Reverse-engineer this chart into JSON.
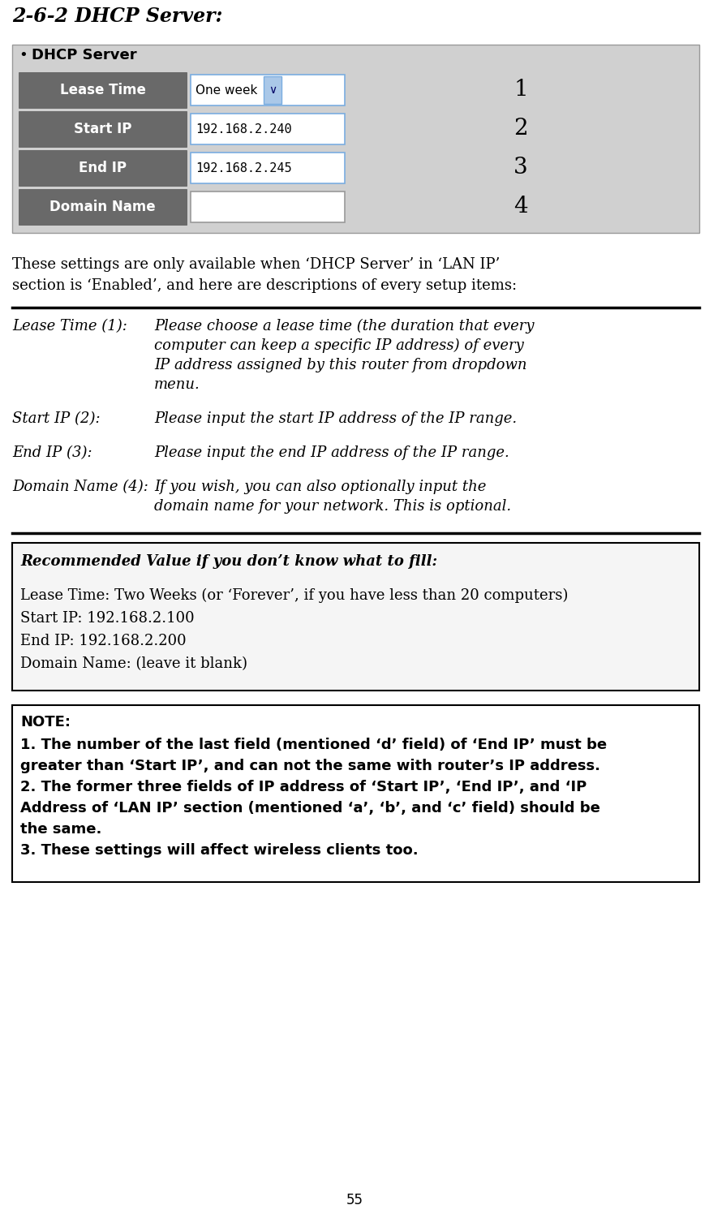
{
  "title": "2-6-2 DHCP Server:",
  "page_number": "55",
  "bg_color": "#ffffff",
  "dhcp_header": "DHCP Server",
  "table_rows": [
    {
      "label": "Lease Time",
      "value": "One week",
      "number": "1"
    },
    {
      "label": "Start IP",
      "value": "192.168.2.240",
      "number": "2"
    },
    {
      "label": "End IP",
      "value": "192.168.2.245",
      "number": "3"
    },
    {
      "label": "Domain Name",
      "value": "",
      "number": "4"
    }
  ],
  "label_bg": "#696969",
  "label_fg": "#ffffff",
  "table_bg": "#d0d0d0",
  "input_bg": "#ffffff",
  "input_border_blue": "#7aade0",
  "input_border_gray": "#999999",
  "intro_line1": "These settings are only available when ‘DHCP Server’ in ‘LAN IP’",
  "intro_line2": "section is ‘Enabled’, and here are descriptions of every setup items:",
  "desc_items": [
    {
      "label": "Lease Time (1):",
      "lines": [
        "Please choose a lease time (the duration that every",
        "computer can keep a specific IP address) of every",
        "IP address assigned by this router from dropdown",
        "menu."
      ]
    },
    {
      "label": "Start IP (2):",
      "lines": [
        "Please input the start IP address of the IP range."
      ]
    },
    {
      "label": "End IP (3):",
      "lines": [
        "Please input the end IP address of the IP range."
      ]
    },
    {
      "label": "Domain Name (4):",
      "lines": [
        "If you wish, you can also optionally input the",
        "domain name for your network. This is optional."
      ]
    }
  ],
  "recommended_title": "Recommended Value if you don’t know what to fill:",
  "recommended_lines": [
    "Lease Time: Two Weeks (or ‘Forever’, if you have less than 20 computers)",
    "Start IP: 192.168.2.100",
    "End IP: 192.168.2.200",
    "Domain Name: (leave it blank)"
  ],
  "note_title": "NOTE:",
  "note_bold_lines": [
    "1. The number of the last field (mentioned ‘d’ field) of ‘End IP’ must be",
    "greater than ‘Start IP’, and can not the same with router’s IP address.",
    "2. The former three fields of IP address of ‘Start IP’, ‘End IP’, and ‘IP",
    "Address of ‘LAN IP’ section (mentioned ‘a’, ‘b’, and ‘c’ field) should be",
    "the same.",
    "3. These settings will affect wireless clients too."
  ]
}
